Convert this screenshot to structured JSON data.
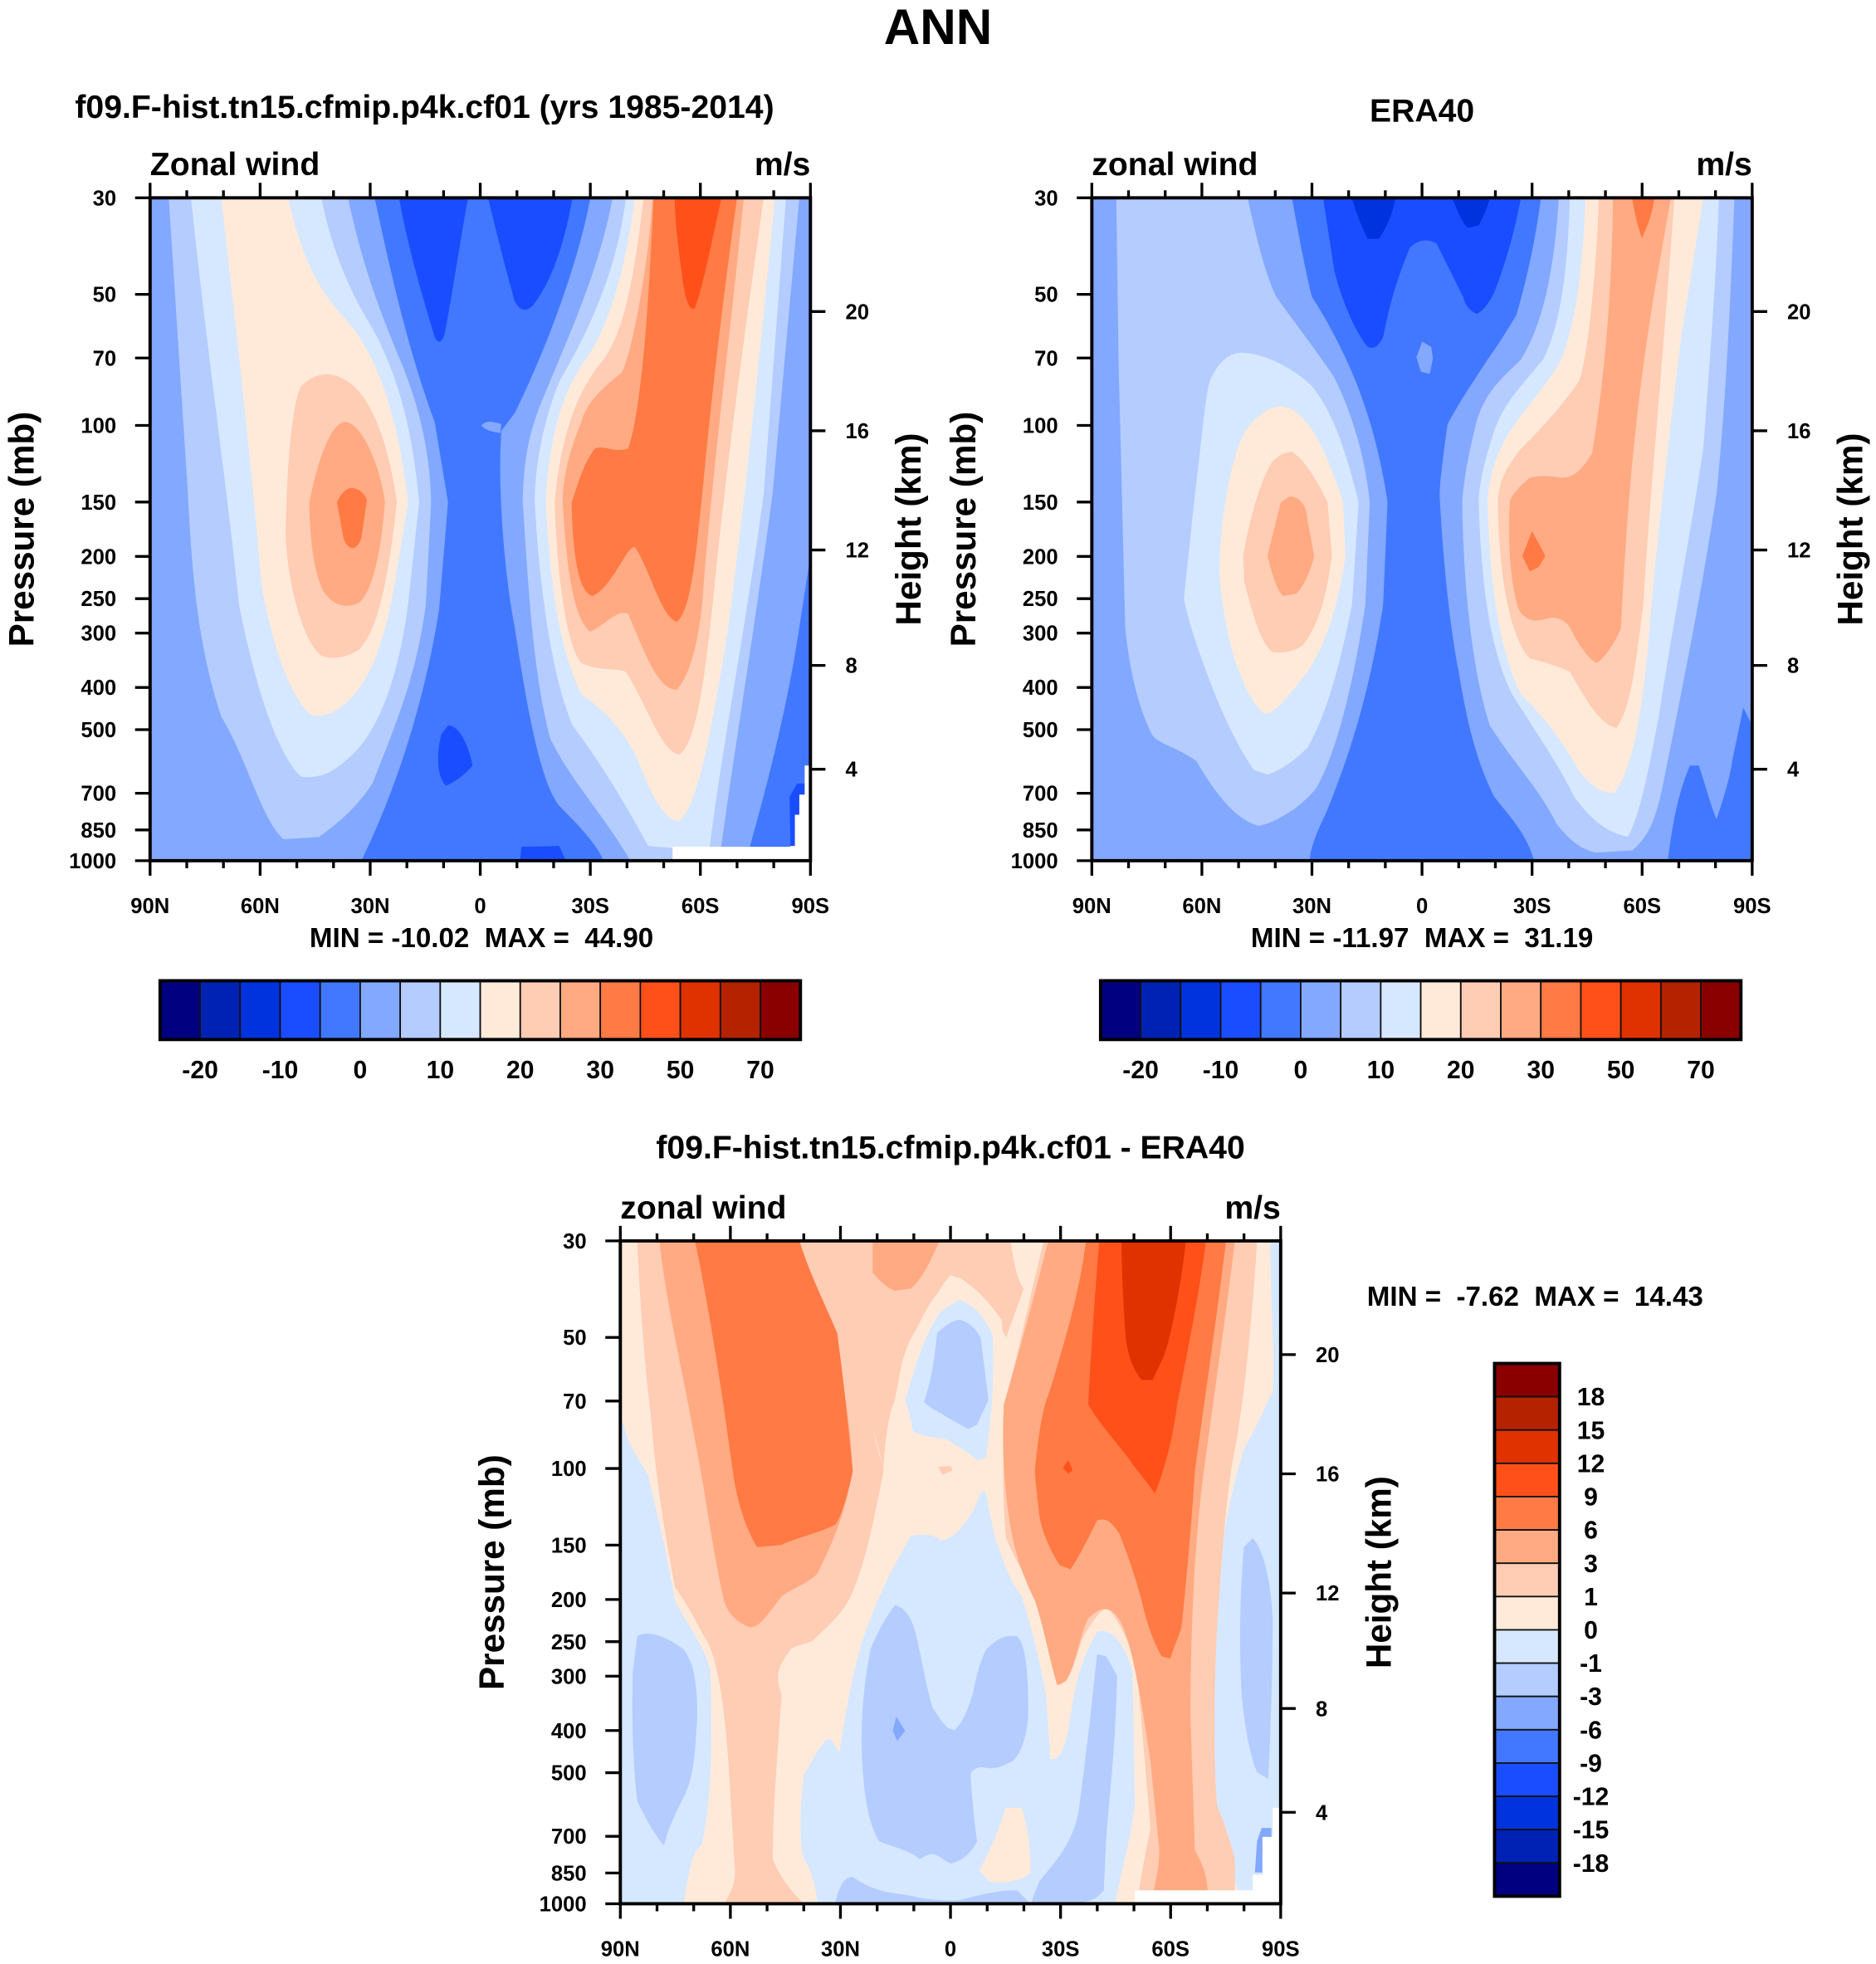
{
  "figure_title": "ANN",
  "colormap": [
    "#000080",
    "#0022b4",
    "#0033dd",
    "#1a4dff",
    "#4178ff",
    "#82a8ff",
    "#b4ccff",
    "#d6e8ff",
    "#ffeada",
    "#ffccb4",
    "#ffaa82",
    "#ff7a44",
    "#ff501a",
    "#e03200",
    "#b42200",
    "#8a0000"
  ],
  "chart_data": [
    {
      "type": "contour",
      "title": "f09.F-hist.tn15.cfmip.p4k.cf01 (yrs 1985-2014)",
      "variable": "Zonal wind",
      "units": "m/s",
      "ylabel": "Pressure (mb)",
      "ylabel_right": "Height (km)",
      "x_ticks": [
        "90N",
        "60N",
        "30N",
        "0",
        "30S",
        "60S",
        "90S"
      ],
      "y_ticks": [
        "30",
        "50",
        "70",
        "100",
        "150",
        "200",
        "250",
        "300",
        "400",
        "500",
        "700",
        "850",
        "1000"
      ],
      "y_right_ticks": [
        "20",
        "16",
        "12",
        "8",
        "4"
      ],
      "ylim": [
        1000,
        30
      ],
      "stats": "MIN = -10.02  MAX =  44.90",
      "min": -10.02,
      "max": 44.9,
      "levels": [
        -20,
        -15,
        -10,
        -5,
        0,
        5,
        10,
        15,
        20,
        25,
        30,
        40,
        50,
        60,
        70
      ],
      "colorbar_labels": [
        "-20",
        "-10",
        "0",
        "10",
        "20",
        "30",
        "50",
        "70"
      ]
    },
    {
      "type": "contour",
      "title": "ERA40",
      "variable": "zonal wind",
      "units": "m/s",
      "ylabel": "Pressure (mb)",
      "ylabel_right": "Height (km)",
      "x_ticks": [
        "90N",
        "60N",
        "30N",
        "0",
        "30S",
        "60S",
        "90S"
      ],
      "y_ticks": [
        "30",
        "50",
        "70",
        "100",
        "150",
        "200",
        "250",
        "300",
        "400",
        "500",
        "700",
        "850",
        "1000"
      ],
      "y_right_ticks": [
        "20",
        "16",
        "12",
        "8",
        "4"
      ],
      "ylim": [
        1000,
        30
      ],
      "stats": "MIN = -11.97  MAX =  31.19",
      "min": -11.97,
      "max": 31.19,
      "levels": [
        -20,
        -15,
        -10,
        -5,
        0,
        5,
        10,
        15,
        20,
        25,
        30,
        40,
        50,
        60,
        70
      ],
      "colorbar_labels": [
        "-20",
        "-10",
        "0",
        "10",
        "20",
        "30",
        "50",
        "70"
      ]
    },
    {
      "type": "contour",
      "title": "f09.F-hist.tn15.cfmip.p4k.cf01 - ERA40",
      "variable": "zonal wind",
      "units": "m/s",
      "ylabel": "Pressure (mb)",
      "ylabel_right": "Height (km)",
      "x_ticks": [
        "90N",
        "60N",
        "30N",
        "0",
        "30S",
        "60S",
        "90S"
      ],
      "y_ticks": [
        "30",
        "50",
        "70",
        "100",
        "150",
        "200",
        "250",
        "300",
        "400",
        "500",
        "700",
        "850",
        "1000"
      ],
      "y_right_ticks": [
        "20",
        "16",
        "12",
        "8",
        "4"
      ],
      "ylim": [
        1000,
        30
      ],
      "stats": "MIN =  -7.62  MAX =  14.43",
      "min": -7.62,
      "max": 14.43,
      "levels": [
        -18,
        -15,
        -12,
        -9,
        -6,
        -3,
        -1,
        0,
        1,
        3,
        6,
        9,
        12,
        15,
        18
      ],
      "colorbar_labels": [
        "18",
        "15",
        "12",
        "9",
        "6",
        "3",
        "1",
        "0",
        "-1",
        "-3",
        "-6",
        "-9",
        "-12",
        "-15",
        "-18"
      ]
    }
  ]
}
